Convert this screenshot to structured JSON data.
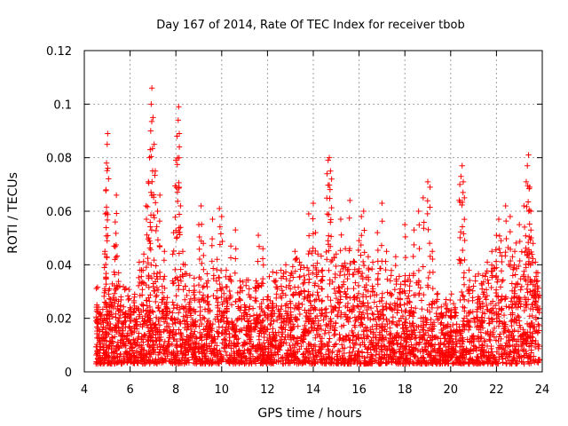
{
  "chart_data": {
    "type": "scatter",
    "title": "Day 167 of 2014, Rate Of TEC Index for receiver tbob",
    "xlabel": "GPS time / hours",
    "ylabel": "ROTI / TECUs",
    "xlim": [
      4,
      24
    ],
    "ylim": [
      0,
      0.12
    ],
    "xticks": [
      4,
      6,
      8,
      10,
      12,
      14,
      16,
      18,
      20,
      22,
      24
    ],
    "yticks": [
      0,
      0.02,
      0.04,
      0.06,
      0.08,
      0.1,
      0.12
    ],
    "xtick_labels": [
      "4",
      "6",
      "8",
      "10",
      "12",
      "14",
      "16",
      "18",
      "20",
      "22",
      "24"
    ],
    "ytick_labels": [
      "0",
      "0.02",
      "0.04",
      "0.06",
      "0.08",
      "0.1",
      "0.12"
    ],
    "grid": true,
    "marker": "+",
    "color": "#ff0000",
    "series": [
      {
        "name": "ROTI",
        "points": [
          [
            4.55,
            0.025
          ],
          [
            4.6,
            0.018
          ],
          [
            4.7,
            0.022
          ],
          [
            4.8,
            0.015
          ],
          [
            4.9,
            0.045
          ],
          [
            4.92,
            0.059
          ],
          [
            4.95,
            0.068
          ],
          [
            4.97,
            0.078
          ],
          [
            5.0,
            0.085
          ],
          [
            5.02,
            0.089
          ],
          [
            5.1,
            0.031
          ],
          [
            5.2,
            0.026
          ],
          [
            5.3,
            0.047
          ],
          [
            5.35,
            0.056
          ],
          [
            5.4,
            0.066
          ],
          [
            5.5,
            0.037
          ],
          [
            5.6,
            0.028
          ],
          [
            5.8,
            0.022
          ],
          [
            6.0,
            0.024
          ],
          [
            6.2,
            0.029
          ],
          [
            6.4,
            0.041
          ],
          [
            6.5,
            0.038
          ],
          [
            6.6,
            0.044
          ],
          [
            6.7,
            0.062
          ],
          [
            6.8,
            0.071
          ],
          [
            6.85,
            0.08
          ],
          [
            6.9,
            0.09
          ],
          [
            6.92,
            0.1
          ],
          [
            6.95,
            0.106
          ],
          [
            7.0,
            0.095
          ],
          [
            7.05,
            0.085
          ],
          [
            7.1,
            0.075
          ],
          [
            7.2,
            0.06
          ],
          [
            7.3,
            0.066
          ],
          [
            7.4,
            0.032
          ],
          [
            7.5,
            0.045
          ],
          [
            7.6,
            0.026
          ],
          [
            7.8,
            0.02
          ],
          [
            7.9,
            0.052
          ],
          [
            8.0,
            0.079
          ],
          [
            8.05,
            0.088
          ],
          [
            8.1,
            0.094
          ],
          [
            8.12,
            0.099
          ],
          [
            8.15,
            0.084
          ],
          [
            8.2,
            0.062
          ],
          [
            8.3,
            0.045
          ],
          [
            8.4,
            0.04
          ],
          [
            8.6,
            0.026
          ],
          [
            8.8,
            0.035
          ],
          [
            9.0,
            0.055
          ],
          [
            9.1,
            0.062
          ],
          [
            9.2,
            0.048
          ],
          [
            9.4,
            0.034
          ],
          [
            9.6,
            0.057
          ],
          [
            9.8,
            0.042
          ],
          [
            9.9,
            0.061
          ],
          [
            10.0,
            0.058
          ],
          [
            10.2,
            0.038
          ],
          [
            10.4,
            0.047
          ],
          [
            10.6,
            0.053
          ],
          [
            10.8,
            0.034
          ],
          [
            11.0,
            0.025
          ],
          [
            11.2,
            0.031
          ],
          [
            11.5,
            0.034
          ],
          [
            11.6,
            0.051
          ],
          [
            11.8,
            0.046
          ],
          [
            12.0,
            0.028
          ],
          [
            12.2,
            0.023
          ],
          [
            12.4,
            0.037
          ],
          [
            12.6,
            0.032
          ],
          [
            12.8,
            0.04
          ],
          [
            13.0,
            0.036
          ],
          [
            13.2,
            0.045
          ],
          [
            13.4,
            0.041
          ],
          [
            13.6,
            0.039
          ],
          [
            13.8,
            0.059
          ],
          [
            14.0,
            0.063
          ],
          [
            14.1,
            0.052
          ],
          [
            14.2,
            0.044
          ],
          [
            14.4,
            0.038
          ],
          [
            14.6,
            0.074
          ],
          [
            14.65,
            0.079
          ],
          [
            14.7,
            0.08
          ],
          [
            14.75,
            0.075
          ],
          [
            14.8,
            0.072
          ],
          [
            15.0,
            0.044
          ],
          [
            15.2,
            0.057
          ],
          [
            15.4,
            0.046
          ],
          [
            15.6,
            0.064
          ],
          [
            15.8,
            0.041
          ],
          [
            16.0,
            0.049
          ],
          [
            16.1,
            0.058
          ],
          [
            16.2,
            0.06
          ],
          [
            16.4,
            0.043
          ],
          [
            16.6,
            0.041
          ],
          [
            16.8,
            0.052
          ],
          [
            17.0,
            0.063
          ],
          [
            17.2,
            0.045
          ],
          [
            17.4,
            0.036
          ],
          [
            17.6,
            0.043
          ],
          [
            17.8,
            0.031
          ],
          [
            18.0,
            0.055
          ],
          [
            18.2,
            0.036
          ],
          [
            18.4,
            0.053
          ],
          [
            18.6,
            0.06
          ],
          [
            18.8,
            0.065
          ],
          [
            19.0,
            0.071
          ],
          [
            19.1,
            0.069
          ],
          [
            19.2,
            0.045
          ],
          [
            19.4,
            0.029
          ],
          [
            19.6,
            0.022
          ],
          [
            19.8,
            0.027
          ],
          [
            20.0,
            0.021
          ],
          [
            20.2,
            0.024
          ],
          [
            20.4,
            0.07
          ],
          [
            20.45,
            0.073
          ],
          [
            20.5,
            0.077
          ],
          [
            20.55,
            0.071
          ],
          [
            20.6,
            0.065
          ],
          [
            20.8,
            0.038
          ],
          [
            21.0,
            0.032
          ],
          [
            21.2,
            0.028
          ],
          [
            21.4,
            0.036
          ],
          [
            21.6,
            0.041
          ],
          [
            21.8,
            0.045
          ],
          [
            22.0,
            0.051
          ],
          [
            22.1,
            0.057
          ],
          [
            22.2,
            0.049
          ],
          [
            22.4,
            0.062
          ],
          [
            22.6,
            0.058
          ],
          [
            22.7,
            0.043
          ],
          [
            22.8,
            0.045
          ],
          [
            23.0,
            0.055
          ],
          [
            23.2,
            0.062
          ],
          [
            23.3,
            0.071
          ],
          [
            23.35,
            0.077
          ],
          [
            23.4,
            0.081
          ],
          [
            23.45,
            0.069
          ],
          [
            23.5,
            0.06
          ],
          [
            23.6,
            0.048
          ],
          [
            23.7,
            0.041
          ],
          [
            23.8,
            0.034
          ]
        ]
      }
    ],
    "background_noise": {
      "description_none": "",
      "x_start": 4.5,
      "x_end": 23.9,
      "y_floor": 0.003,
      "band": [
        [
          4.5,
          0.018
        ],
        [
          5.5,
          0.02
        ],
        [
          6.5,
          0.022
        ],
        [
          7.5,
          0.022
        ],
        [
          8.5,
          0.022
        ],
        [
          9.5,
          0.021
        ],
        [
          10.5,
          0.02
        ],
        [
          11.5,
          0.021
        ],
        [
          12.5,
          0.022
        ],
        [
          13.5,
          0.026
        ],
        [
          14.5,
          0.027
        ],
        [
          15.5,
          0.026
        ],
        [
          16.5,
          0.025
        ],
        [
          17.5,
          0.022
        ],
        [
          18.5,
          0.02
        ],
        [
          19.5,
          0.017
        ],
        [
          20.5,
          0.016
        ],
        [
          21.5,
          0.024
        ],
        [
          22.5,
          0.028
        ],
        [
          23.5,
          0.029
        ],
        [
          23.9,
          0.025
        ]
      ]
    }
  }
}
